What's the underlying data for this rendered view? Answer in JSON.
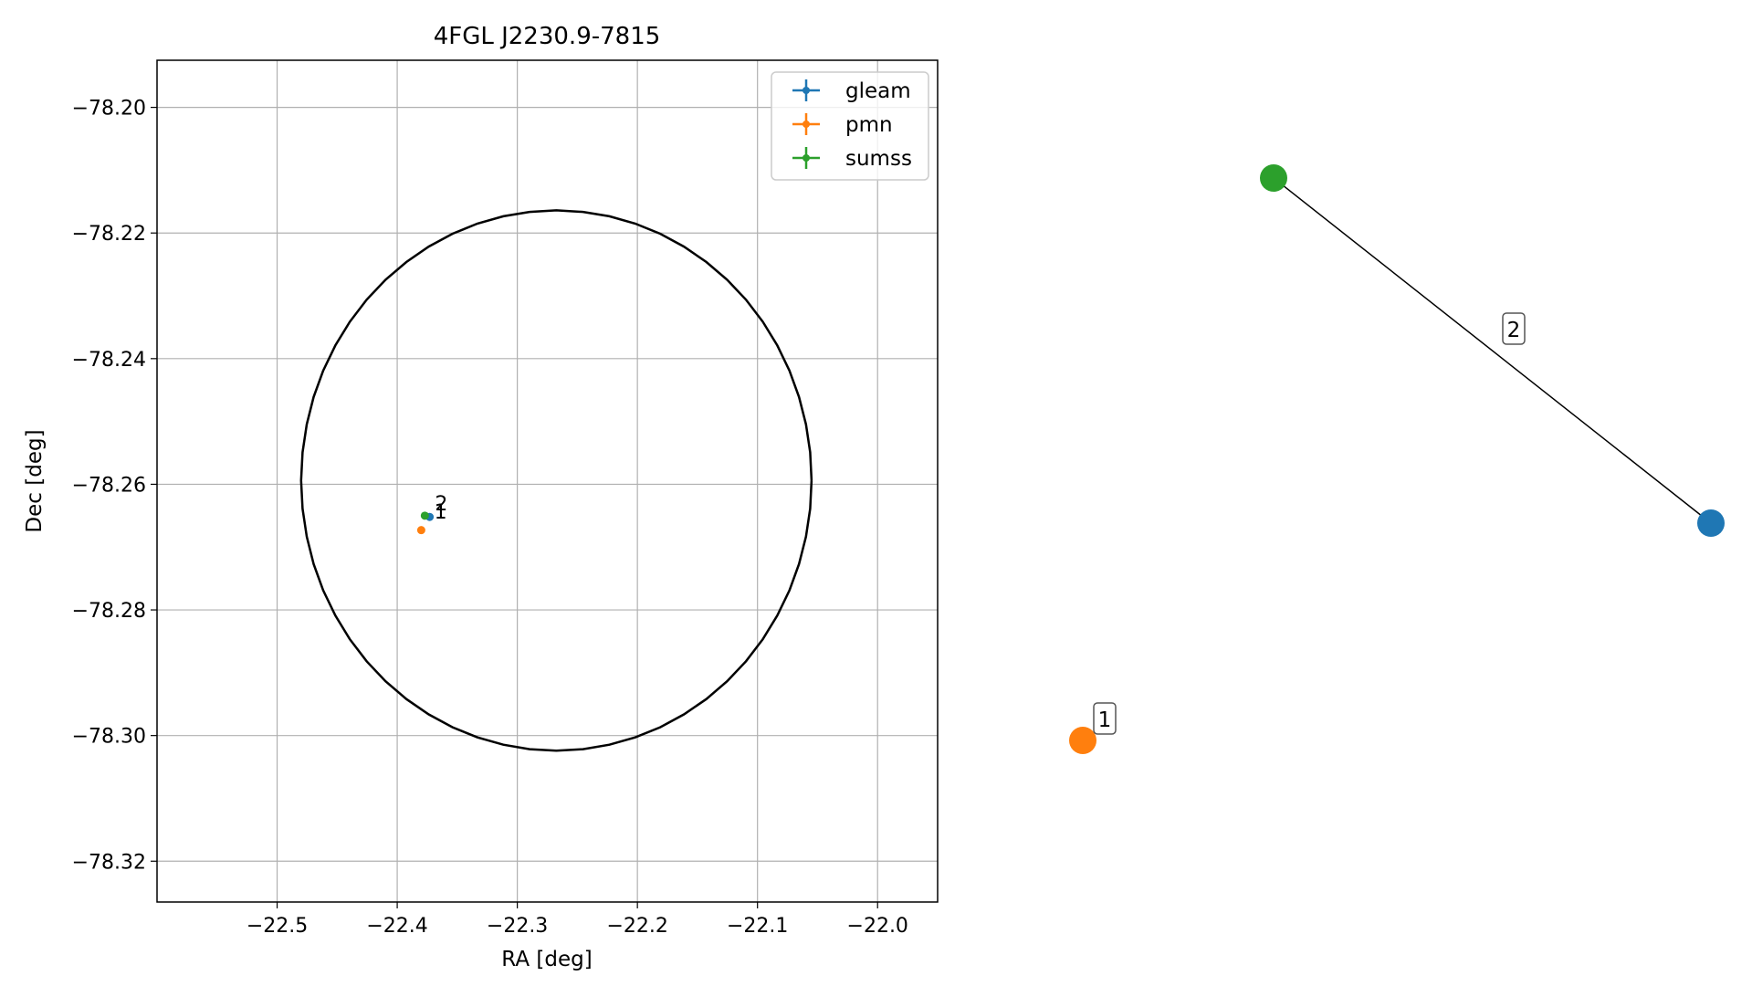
{
  "chart_data": [
    {
      "type": "scatter",
      "title": "4FGL J2230.9-7815",
      "xlabel": "RA [deg]",
      "ylabel": "Dec [deg]",
      "xlim": [
        -22.6,
        -21.95
      ],
      "ylim": [
        -78.3265,
        -78.1925
      ],
      "x_ticks": [
        {
          "value": -22.5,
          "label": "−22.5"
        },
        {
          "value": -22.4,
          "label": "−22.4"
        },
        {
          "value": -22.3,
          "label": "−22.3"
        },
        {
          "value": -22.2,
          "label": "−22.2"
        },
        {
          "value": -22.1,
          "label": "−22.1"
        },
        {
          "value": -22.0,
          "label": "−22.0"
        }
      ],
      "y_ticks": [
        {
          "value": -78.2,
          "label": "−78.20"
        },
        {
          "value": -78.22,
          "label": "−78.22"
        },
        {
          "value": -78.24,
          "label": "−78.24"
        },
        {
          "value": -78.26,
          "label": "−78.26"
        },
        {
          "value": -78.28,
          "label": "−78.28"
        },
        {
          "value": -78.3,
          "label": "−78.30"
        },
        {
          "value": -78.32,
          "label": "−78.32"
        }
      ],
      "grid": true,
      "legend_position": "top-right",
      "series": [
        {
          "name": "gleam",
          "color": "#1f77b4",
          "points": [
            {
              "x": -22.373,
              "y": -78.2652
            }
          ]
        },
        {
          "name": "pmn",
          "color": "#ff7f0e",
          "points": [
            {
              "x": -22.38,
              "y": -78.2673
            }
          ]
        },
        {
          "name": "sumss",
          "color": "#2ca02c",
          "points": [
            {
              "x": -22.377,
              "y": -78.265
            }
          ]
        }
      ],
      "ellipse": {
        "center_x": -22.2675,
        "center_y": -78.2594,
        "semi_axis_ra": 0.2125,
        "semi_axis_dec": 0.043,
        "color": "#000000"
      },
      "annotations": [
        {
          "text": "1",
          "x": -22.373,
          "y": -78.2652
        },
        {
          "text": "2",
          "x": -22.377,
          "y": -78.265
        }
      ]
    },
    {
      "type": "graph",
      "nodes": [
        {
          "id": "sumss",
          "color": "#2ca02c"
        },
        {
          "id": "gleam",
          "color": "#1f77b4"
        },
        {
          "id": "pmn",
          "color": "#ff7f0e"
        }
      ],
      "edges": [
        {
          "from": "sumss",
          "to": "gleam",
          "label": "2"
        }
      ],
      "node_labels": [
        {
          "node": "pmn",
          "label": "1"
        }
      ]
    }
  ]
}
